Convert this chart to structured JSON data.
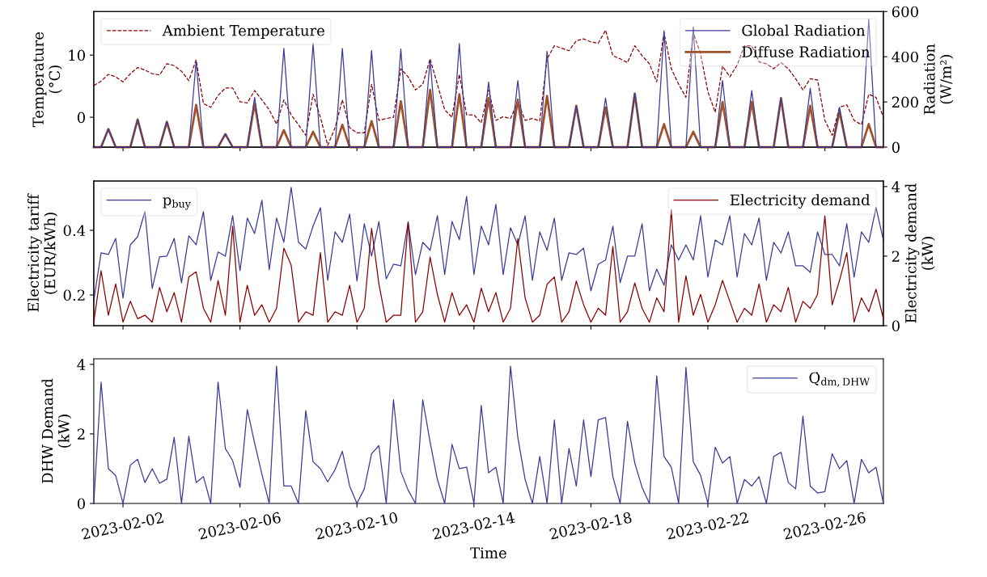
{
  "chart_data": [
    {
      "type": "line",
      "ylabel": "Temperature\n(°C)",
      "y2label": "Radiation\n(W/m²)",
      "x": [
        "2023-02-01T00:00",
        "2023-02-01T06:00",
        "2023-02-01T12:00",
        "2023-02-01T18:00",
        "2023-02-02T00:00",
        "2023-02-02T06:00",
        "2023-02-02T12:00",
        "2023-02-02T18:00",
        "2023-02-03T00:00",
        "2023-02-03T06:00",
        "2023-02-03T12:00",
        "2023-02-03T18:00",
        "2023-02-04T00:00",
        "2023-02-04T06:00",
        "2023-02-04T12:00",
        "2023-02-04T18:00",
        "2023-02-05T00:00",
        "2023-02-05T06:00",
        "2023-02-05T12:00",
        "2023-02-05T18:00",
        "2023-02-06T00:00",
        "2023-02-06T06:00",
        "2023-02-06T12:00",
        "2023-02-06T18:00",
        "2023-02-07T00:00",
        "2023-02-07T06:00",
        "2023-02-07T12:00",
        "2023-02-07T18:00",
        "2023-02-08T00:00",
        "2023-02-08T06:00",
        "2023-02-08T12:00",
        "2023-02-08T18:00",
        "2023-02-09T00:00",
        "2023-02-09T06:00",
        "2023-02-09T12:00",
        "2023-02-09T18:00",
        "2023-02-10T00:00",
        "2023-02-10T06:00",
        "2023-02-10T12:00",
        "2023-02-10T18:00",
        "2023-02-11T00:00",
        "2023-02-11T06:00",
        "2023-02-11T12:00",
        "2023-02-11T18:00",
        "2023-02-12T00:00",
        "2023-02-12T06:00",
        "2023-02-12T12:00",
        "2023-02-12T18:00",
        "2023-02-13T00:00",
        "2023-02-13T06:00",
        "2023-02-13T12:00",
        "2023-02-13T18:00",
        "2023-02-14T00:00",
        "2023-02-14T06:00",
        "2023-02-14T12:00",
        "2023-02-14T18:00",
        "2023-02-15T00:00",
        "2023-02-15T06:00",
        "2023-02-15T12:00",
        "2023-02-15T18:00",
        "2023-02-16T00:00",
        "2023-02-16T06:00",
        "2023-02-16T12:00",
        "2023-02-16T18:00",
        "2023-02-17T00:00",
        "2023-02-17T06:00",
        "2023-02-17T12:00",
        "2023-02-17T18:00",
        "2023-02-18T00:00",
        "2023-02-18T06:00",
        "2023-02-18T12:00",
        "2023-02-18T18:00",
        "2023-02-19T00:00",
        "2023-02-19T06:00",
        "2023-02-19T12:00",
        "2023-02-19T18:00",
        "2023-02-20T00:00",
        "2023-02-20T06:00",
        "2023-02-20T12:00",
        "2023-02-20T18:00",
        "2023-02-21T00:00",
        "2023-02-21T06:00",
        "2023-02-21T12:00",
        "2023-02-21T18:00",
        "2023-02-22T00:00",
        "2023-02-22T06:00",
        "2023-02-22T12:00",
        "2023-02-22T18:00",
        "2023-02-23T00:00",
        "2023-02-23T06:00",
        "2023-02-23T12:00",
        "2023-02-23T18:00",
        "2023-02-24T00:00",
        "2023-02-24T06:00",
        "2023-02-24T12:00",
        "2023-02-24T18:00",
        "2023-02-25T00:00",
        "2023-02-25T06:00",
        "2023-02-25T12:00",
        "2023-02-25T18:00",
        "2023-02-26T00:00",
        "2023-02-26T06:00",
        "2023-02-26T12:00",
        "2023-02-26T18:00",
        "2023-02-27T00:00",
        "2023-02-27T06:00",
        "2023-02-27T12:00",
        "2023-02-27T18:00",
        "2023-02-28T00:00"
      ],
      "xlim": [
        "2023-02-01T00:00",
        "2023-02-28T00:00"
      ],
      "ylim": [
        -4.8,
        17
      ],
      "yticks": [
        0,
        10
      ],
      "y2lim": [
        0,
        600
      ],
      "y2ticks": [
        0,
        200,
        400,
        600
      ],
      "tick_labels": "y",
      "legend": "top left",
      "marker": "none",
      "series": [
        {
          "name": "Ambient Temperature",
          "color": "#8b0000",
          "line_style": "dashed",
          "values": [
            5.1,
            5.8,
            6.9,
            6.5,
            5.7,
            7.0,
            8.0,
            7.6,
            7.0,
            6.8,
            8.6,
            8.3,
            7.4,
            5.9,
            9.2,
            2.2,
            1.6,
            3.5,
            4.7,
            4.7,
            2.5,
            2.3,
            4.3,
            2.8,
            1.2,
            -1.1,
            2.8,
            0.4,
            -1.2,
            -2.9,
            3.7,
            0,
            -4.5,
            -1.7,
            2.8,
            -1.7,
            -2.5,
            -2.5,
            5.3,
            -0.5,
            -0.2,
            0,
            7.8,
            6.5,
            4.4,
            5.3,
            9.4,
            5.3,
            1.2,
            0,
            6.9,
            0.4,
            0.4,
            -0.9,
            4.4,
            -0.5,
            0.1,
            -0.2,
            2.5,
            -0.5,
            -0.2,
            -0.6,
            9.4,
            11.5,
            11.1,
            10.7,
            12.3,
            12.6,
            12.1,
            11.9,
            14.0,
            9.9,
            9.4,
            8.8,
            11.5,
            9.9,
            8.6,
            5.7,
            13.6,
            7.8,
            5.3,
            3.2,
            13.6,
            10.2,
            4.1,
            0.8,
            8.2,
            6.5,
            8.4,
            11.5,
            11.5,
            8.9,
            8.6,
            7.8,
            8.8,
            7.8,
            6.2,
            4.4,
            6.2,
            6.0,
            -0.5,
            -2.9,
            1.6,
            2.0,
            -0.5,
            -1.2,
            3.7,
            3.2,
            0
          ]
        },
        {
          "name": "Global Radiation",
          "color": "#3a3a98",
          "axis": "y2",
          "values": [
            0,
            0,
            80,
            0,
            0,
            0,
            122,
            0,
            0,
            0,
            112,
            0,
            0,
            0,
            380,
            0,
            0,
            0,
            58,
            0,
            0,
            0,
            220,
            0,
            0,
            0,
            437,
            0,
            0,
            0,
            458,
            0,
            0,
            0,
            437,
            0,
            0,
            0,
            427,
            0,
            0,
            0,
            434,
            0,
            0,
            0,
            386,
            0,
            0,
            0,
            458,
            0,
            0,
            0,
            288,
            0,
            0,
            0,
            295,
            0,
            0,
            0,
            424,
            0,
            0,
            0,
            183,
            0,
            0,
            0,
            217,
            0,
            0,
            0,
            237,
            0,
            0,
            0,
            515,
            0,
            0,
            0,
            532,
            0,
            0,
            0,
            295,
            0,
            0,
            0,
            250,
            0,
            0,
            0,
            217,
            0,
            0,
            0,
            261,
            0,
            0,
            0,
            176,
            0,
            0,
            0,
            566,
            0,
            0
          ]
        },
        {
          "name": "Diffuse Radiation",
          "color": "#a0522d",
          "axis": "y2",
          "values": [
            0,
            0,
            80,
            0,
            0,
            0,
            122,
            0,
            0,
            0,
            112,
            0,
            0,
            0,
            187,
            0,
            0,
            0,
            58,
            0,
            0,
            0,
            193,
            0,
            0,
            0,
            75,
            0,
            0,
            0,
            68,
            0,
            0,
            0,
            99,
            0,
            0,
            0,
            115,
            0,
            0,
            0,
            203,
            0,
            0,
            0,
            254,
            0,
            0,
            0,
            234,
            0,
            0,
            0,
            217,
            0,
            0,
            0,
            210,
            0,
            0,
            0,
            227,
            0,
            0,
            0,
            183,
            0,
            0,
            0,
            176,
            0,
            0,
            0,
            237,
            0,
            0,
            0,
            102,
            0,
            0,
            0,
            68,
            0,
            0,
            0,
            200,
            0,
            0,
            0,
            200,
            0,
            0,
            0,
            217,
            0,
            0,
            0,
            183,
            0,
            0,
            0,
            159,
            0,
            0,
            0,
            102,
            0,
            0
          ]
        }
      ]
    },
    {
      "type": "line",
      "ylabel": "Electricity tariff\n(EUR/kWh)",
      "y2label": "Electricity demand\n(kW)",
      "x": [
        "2023-02-01T00:00",
        "2023-02-01T06:00",
        "2023-02-01T12:00",
        "2023-02-01T18:00",
        "2023-02-02T00:00",
        "2023-02-02T06:00",
        "2023-02-02T12:00",
        "2023-02-02T18:00",
        "2023-02-03T00:00",
        "2023-02-03T06:00",
        "2023-02-03T12:00",
        "2023-02-03T18:00",
        "2023-02-04T00:00",
        "2023-02-04T06:00",
        "2023-02-04T12:00",
        "2023-02-04T18:00",
        "2023-02-05T00:00",
        "2023-02-05T06:00",
        "2023-02-05T12:00",
        "2023-02-05T18:00",
        "2023-02-06T00:00",
        "2023-02-06T06:00",
        "2023-02-06T12:00",
        "2023-02-06T18:00",
        "2023-02-07T00:00",
        "2023-02-07T06:00",
        "2023-02-07T12:00",
        "2023-02-07T18:00",
        "2023-02-08T00:00",
        "2023-02-08T06:00",
        "2023-02-08T12:00",
        "2023-02-08T18:00",
        "2023-02-09T00:00",
        "2023-02-09T06:00",
        "2023-02-09T12:00",
        "2023-02-09T18:00",
        "2023-02-10T00:00",
        "2023-02-10T06:00",
        "2023-02-10T12:00",
        "2023-02-10T18:00",
        "2023-02-11T00:00",
        "2023-02-11T06:00",
        "2023-02-11T12:00",
        "2023-02-11T18:00",
        "2023-02-12T00:00",
        "2023-02-12T06:00",
        "2023-02-12T12:00",
        "2023-02-12T18:00",
        "2023-02-13T00:00",
        "2023-02-13T06:00",
        "2023-02-13T12:00",
        "2023-02-13T18:00",
        "2023-02-14T00:00",
        "2023-02-14T06:00",
        "2023-02-14T12:00",
        "2023-02-14T18:00",
        "2023-02-15T00:00",
        "2023-02-15T06:00",
        "2023-02-15T12:00",
        "2023-02-15T18:00",
        "2023-02-16T00:00",
        "2023-02-16T06:00",
        "2023-02-16T12:00",
        "2023-02-16T18:00",
        "2023-02-17T00:00",
        "2023-02-17T06:00",
        "2023-02-17T12:00",
        "2023-02-17T18:00",
        "2023-02-18T00:00",
        "2023-02-18T06:00",
        "2023-02-18T12:00",
        "2023-02-18T18:00",
        "2023-02-19T00:00",
        "2023-02-19T06:00",
        "2023-02-19T12:00",
        "2023-02-19T18:00",
        "2023-02-20T00:00",
        "2023-02-20T06:00",
        "2023-02-20T12:00",
        "2023-02-20T18:00",
        "2023-02-21T00:00",
        "2023-02-21T06:00",
        "2023-02-21T12:00",
        "2023-02-21T18:00",
        "2023-02-22T00:00",
        "2023-02-22T06:00",
        "2023-02-22T12:00",
        "2023-02-22T18:00",
        "2023-02-23T00:00",
        "2023-02-23T06:00",
        "2023-02-23T12:00",
        "2023-02-23T18:00",
        "2023-02-24T00:00",
        "2023-02-24T06:00",
        "2023-02-24T12:00",
        "2023-02-24T18:00",
        "2023-02-25T00:00",
        "2023-02-25T06:00",
        "2023-02-25T12:00",
        "2023-02-25T18:00",
        "2023-02-26T00:00",
        "2023-02-26T06:00",
        "2023-02-26T12:00",
        "2023-02-26T18:00",
        "2023-02-27T00:00",
        "2023-02-27T06:00",
        "2023-02-27T12:00",
        "2023-02-27T18:00",
        "2023-02-28T00:00"
      ],
      "xlim": [
        "2023-02-01T00:00",
        "2023-02-28T00:00"
      ],
      "ylim": [
        0.105,
        0.5525
      ],
      "yticks": [
        0.2,
        0.4
      ],
      "y2lim": [
        0,
        4.16
      ],
      "y2ticks": [
        0,
        2,
        4
      ],
      "tick_labels": "y",
      "legend": "top left",
      "marker": "none",
      "series": [
        {
          "name": "p$_{buy}$",
          "color": "#3a3a98",
          "values": [
            0.183,
            0.33,
            0.325,
            0.375,
            0.19,
            0.355,
            0.38,
            0.458,
            0.22,
            0.318,
            0.32,
            0.375,
            0.238,
            0.383,
            0.355,
            0.458,
            0.245,
            0.333,
            0.32,
            0.445,
            0.275,
            0.438,
            0.39,
            0.493,
            0.278,
            0.438,
            0.363,
            0.533,
            0.363,
            0.342,
            0.413,
            0.47,
            0.245,
            0.395,
            0.363,
            0.45,
            0.243,
            0.42,
            0.32,
            0.427,
            0.25,
            0.295,
            0.29,
            0.425,
            0.263,
            0.363,
            0.338,
            0.445,
            0.263,
            0.427,
            0.371,
            0.505,
            0.263,
            0.413,
            0.355,
            0.48,
            0.263,
            0.408,
            0.355,
            0.445,
            0.245,
            0.395,
            0.338,
            0.438,
            0.245,
            0.33,
            0.325,
            0.345,
            0.213,
            0.295,
            0.308,
            0.413,
            0.238,
            0.32,
            0.32,
            0.42,
            0.213,
            0.28,
            0.23,
            0.355,
            0.308,
            0.355,
            0.308,
            0.445,
            0.255,
            0.37,
            0.355,
            0.445,
            0.255,
            0.39,
            0.355,
            0.438,
            0.245,
            0.363,
            0.33,
            0.395,
            0.29,
            0.29,
            0.27,
            0.395,
            0.325,
            0.325,
            0.29,
            0.42,
            0.255,
            0.395,
            0.363,
            0.47,
            0.37
          ]
        },
        {
          "name": "Electricity demand",
          "color": "#8b0000",
          "axis": "y2",
          "values": [
            0.1,
            1.58,
            0.3,
            1.2,
            0.1,
            0.7,
            0.2,
            0.3,
            0.1,
            1.1,
            0.4,
            0.95,
            0.1,
            1.4,
            1.55,
            0.5,
            0.1,
            1.3,
            0.3,
            2.86,
            0.1,
            1.16,
            0.3,
            0.6,
            0.1,
            0.5,
            2.23,
            1.74,
            0.1,
            0.4,
            0.3,
            2.1,
            0.1,
            0.4,
            0.3,
            1.16,
            0.1,
            0.5,
            2.8,
            1.2,
            0.1,
            0.3,
            0.3,
            2.98,
            0.1,
            0.4,
            1.97,
            0.9,
            0.1,
            0.95,
            0.3,
            0.6,
            0.1,
            1.08,
            0.4,
            0.95,
            0.1,
            0.5,
            2.5,
            0.8,
            0.1,
            0.3,
            1.19,
            1.4,
            0.1,
            0.4,
            1.28,
            0.6,
            0.1,
            0.5,
            0.3,
            2.28,
            0.1,
            0.4,
            1.23,
            0.5,
            0.1,
            0.8,
            0.4,
            3.33,
            0.1,
            1.43,
            0.3,
            0.9,
            0.1,
            0.6,
            1.3,
            0.7,
            0.1,
            0.5,
            0.3,
            1.2,
            0.1,
            0.6,
            0.4,
            1.1,
            0.1,
            0.7,
            0.5,
            0.9,
            3.16,
            0.6,
            1.3,
            2.1,
            0.1,
            0.8,
            0.4,
            1.05,
            0.2
          ]
        }
      ]
    },
    {
      "type": "line",
      "ylabel": "DHW Demand\n(kW)",
      "xlabel": "Time",
      "x": [
        "2023-02-01T00:00",
        "2023-02-01T06:00",
        "2023-02-01T12:00",
        "2023-02-01T18:00",
        "2023-02-02T00:00",
        "2023-02-02T06:00",
        "2023-02-02T12:00",
        "2023-02-02T18:00",
        "2023-02-03T00:00",
        "2023-02-03T06:00",
        "2023-02-03T12:00",
        "2023-02-03T18:00",
        "2023-02-04T00:00",
        "2023-02-04T06:00",
        "2023-02-04T12:00",
        "2023-02-04T18:00",
        "2023-02-05T00:00",
        "2023-02-05T06:00",
        "2023-02-05T12:00",
        "2023-02-05T18:00",
        "2023-02-06T00:00",
        "2023-02-06T06:00",
        "2023-02-06T12:00",
        "2023-02-06T18:00",
        "2023-02-07T00:00",
        "2023-02-07T06:00",
        "2023-02-07T12:00",
        "2023-02-07T18:00",
        "2023-02-08T00:00",
        "2023-02-08T06:00",
        "2023-02-08T12:00",
        "2023-02-08T18:00",
        "2023-02-09T00:00",
        "2023-02-09T06:00",
        "2023-02-09T12:00",
        "2023-02-09T18:00",
        "2023-02-10T00:00",
        "2023-02-10T06:00",
        "2023-02-10T12:00",
        "2023-02-10T18:00",
        "2023-02-11T00:00",
        "2023-02-11T06:00",
        "2023-02-11T12:00",
        "2023-02-11T18:00",
        "2023-02-12T00:00",
        "2023-02-12T06:00",
        "2023-02-12T12:00",
        "2023-02-12T18:00",
        "2023-02-13T00:00",
        "2023-02-13T06:00",
        "2023-02-13T12:00",
        "2023-02-13T18:00",
        "2023-02-14T00:00",
        "2023-02-14T06:00",
        "2023-02-14T12:00",
        "2023-02-14T18:00",
        "2023-02-15T00:00",
        "2023-02-15T06:00",
        "2023-02-15T12:00",
        "2023-02-15T18:00",
        "2023-02-16T00:00",
        "2023-02-16T06:00",
        "2023-02-16T12:00",
        "2023-02-16T18:00",
        "2023-02-17T00:00",
        "2023-02-17T06:00",
        "2023-02-17T12:00",
        "2023-02-17T18:00",
        "2023-02-18T00:00",
        "2023-02-18T06:00",
        "2023-02-18T12:00",
        "2023-02-18T18:00",
        "2023-02-19T00:00",
        "2023-02-19T06:00",
        "2023-02-19T12:00",
        "2023-02-19T18:00",
        "2023-02-20T00:00",
        "2023-02-20T06:00",
        "2023-02-20T12:00",
        "2023-02-20T18:00",
        "2023-02-21T00:00",
        "2023-02-21T06:00",
        "2023-02-21T12:00",
        "2023-02-21T18:00",
        "2023-02-22T00:00",
        "2023-02-22T06:00",
        "2023-02-22T12:00",
        "2023-02-22T18:00",
        "2023-02-23T00:00",
        "2023-02-23T06:00",
        "2023-02-23T12:00",
        "2023-02-23T18:00",
        "2023-02-24T00:00",
        "2023-02-24T06:00",
        "2023-02-24T12:00",
        "2023-02-24T18:00",
        "2023-02-25T00:00",
        "2023-02-25T06:00",
        "2023-02-25T12:00",
        "2023-02-25T18:00",
        "2023-02-26T00:00",
        "2023-02-26T06:00",
        "2023-02-26T12:00",
        "2023-02-26T18:00",
        "2023-02-27T00:00",
        "2023-02-27T06:00",
        "2023-02-27T12:00",
        "2023-02-27T18:00",
        "2023-02-28T00:00"
      ],
      "xlim": [
        "2023-02-01T00:00",
        "2023-02-28T00:00"
      ],
      "xticks": [
        "2023-02-02",
        "2023-02-06",
        "2023-02-10",
        "2023-02-14",
        "2023-02-18",
        "2023-02-22",
        "2023-02-26"
      ],
      "ylim": [
        0,
        4.16
      ],
      "yticks": [
        0,
        2,
        4
      ],
      "legend": "top right",
      "marker": "none",
      "series": [
        {
          "name": "Q̇$_{dm,DHW}$",
          "color": "#3a3a98",
          "values": [
            0,
            3.49,
            1.0,
            0.8,
            0,
            1.1,
            1.27,
            0.6,
            1.0,
            0.58,
            0.7,
            1.9,
            0,
            1.93,
            0.6,
            0.77,
            0,
            3.49,
            1.58,
            1.23,
            0.46,
            2.7,
            1.74,
            0.84,
            0,
            3.95,
            0.5,
            0.5,
            0,
            2.67,
            1.2,
            1.0,
            0.62,
            0.97,
            1.5,
            0.5,
            0,
            0.42,
            1.43,
            1.66,
            0,
            2.98,
            0.92,
            0.38,
            0,
            2.98,
            1.77,
            0.69,
            0,
            1.7,
            1.0,
            1.04,
            0,
            2.82,
            0.88,
            1.04,
            0,
            3.95,
            1.9,
            0.69,
            0,
            1.35,
            0,
            2.4,
            0,
            1.58,
            0.5,
            2.4,
            0.77,
            2.4,
            2.47,
            0.77,
            0,
            2.36,
            1.16,
            0.46,
            0,
            3.67,
            1.35,
            1.04,
            0,
            3.91,
            1.2,
            0.81,
            0,
            1.62,
            1.16,
            1.35,
            0,
            0.69,
            0.5,
            0.77,
            0,
            1.35,
            1.47,
            0.6,
            0.42,
            2.51,
            0.5,
            0.3,
            0.34,
            1.43,
            1.0,
            1.23,
            0,
            1.27,
            0.88,
            1.04,
            0
          ]
        }
      ]
    }
  ]
}
